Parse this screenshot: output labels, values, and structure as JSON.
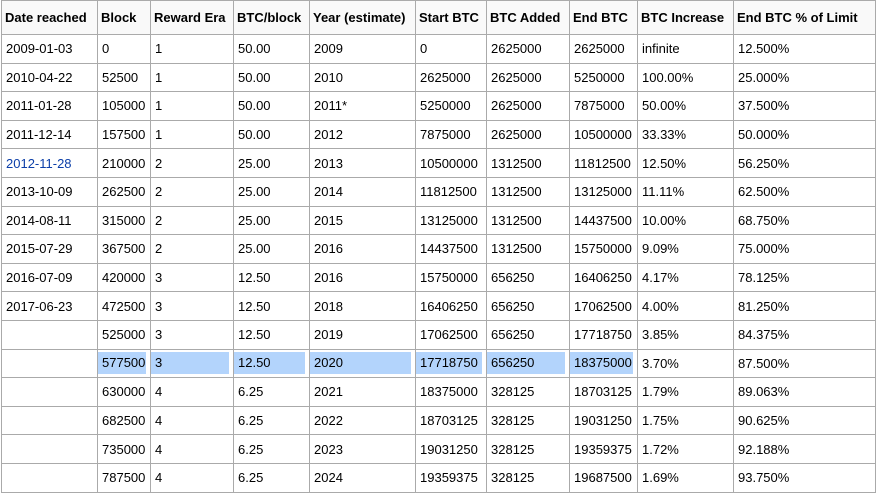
{
  "table": {
    "headers": [
      "Date reached",
      "Block",
      "Reward Era",
      "BTC/block",
      "Year (estimate)",
      "Start BTC",
      "BTC Added",
      "End BTC",
      "BTC Increase",
      "End BTC % of Limit"
    ],
    "rows": [
      [
        "2009-01-03",
        "0",
        "1",
        "50.00",
        "2009",
        "0",
        "2625000",
        "2625000",
        "infinite",
        "12.500%"
      ],
      [
        "2010-04-22",
        "52500",
        "1",
        "50.00",
        "2010",
        "2625000",
        "2625000",
        "5250000",
        "100.00%",
        "25.000%"
      ],
      [
        "2011-01-28",
        "105000",
        "1",
        "50.00",
        "2011*",
        "5250000",
        "2625000",
        "7875000",
        "50.00%",
        "37.500%"
      ],
      [
        "2011-12-14",
        "157500",
        "1",
        "50.00",
        "2012",
        "7875000",
        "2625000",
        "10500000",
        "33.33%",
        "50.000%"
      ],
      [
        "2012-11-28",
        "210000",
        "2",
        "25.00",
        "2013",
        "10500000",
        "1312500",
        "11812500",
        "12.50%",
        "56.250%"
      ],
      [
        "2013-10-09",
        "262500",
        "2",
        "25.00",
        "2014",
        "11812500",
        "1312500",
        "13125000",
        "11.11%",
        "62.500%"
      ],
      [
        "2014-08-11",
        "315000",
        "2",
        "25.00",
        "2015",
        "13125000",
        "1312500",
        "14437500",
        "10.00%",
        "68.750%"
      ],
      [
        "2015-07-29",
        "367500",
        "2",
        "25.00",
        "2016",
        "14437500",
        "1312500",
        "15750000",
        "9.09%",
        "75.000%"
      ],
      [
        "2016-07-09",
        "420000",
        "3",
        "12.50",
        "2016",
        "15750000",
        "656250",
        "16406250",
        "4.17%",
        "78.125%"
      ],
      [
        "2017-06-23",
        "472500",
        "3",
        "12.50",
        "2018",
        "16406250",
        "656250",
        "17062500",
        "4.00%",
        "81.250%"
      ],
      [
        null,
        "525000",
        "3",
        "12.50",
        "2019",
        "17062500",
        "656250",
        "17718750",
        "3.85%",
        "84.375%"
      ],
      [
        null,
        "577500",
        "3",
        "12.50",
        "2020",
        "17718750",
        "656250",
        "18375000",
        "3.70%",
        "87.500%"
      ],
      [
        null,
        "630000",
        "4",
        "6.25",
        "2021",
        "18375000",
        "328125",
        "18703125",
        "1.79%",
        "89.063%"
      ],
      [
        null,
        "682500",
        "4",
        "6.25",
        "2022",
        "18703125",
        "328125",
        "19031250",
        "1.75%",
        "90.625%"
      ],
      [
        null,
        "735000",
        "4",
        "6.25",
        "2023",
        "19031250",
        "328125",
        "19359375",
        "1.72%",
        "92.188%"
      ],
      [
        null,
        "787500",
        "4",
        "6.25",
        "2024",
        "19359375",
        "328125",
        "19687500",
        "1.69%",
        "93.750%"
      ]
    ]
  }
}
